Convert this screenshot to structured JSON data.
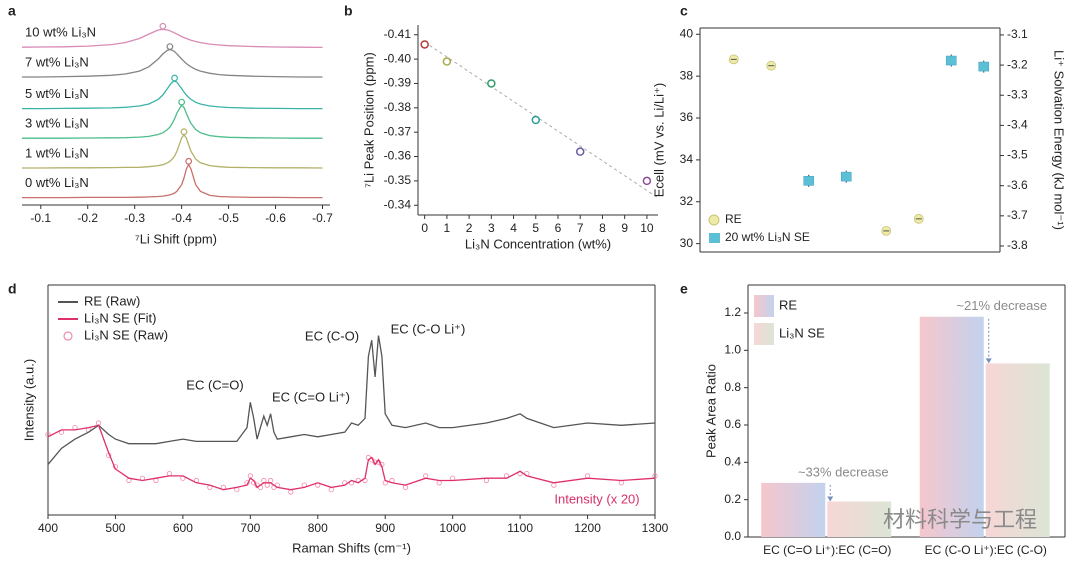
{
  "chart_data": [
    {
      "panel_label": "a",
      "type": "line",
      "xlabel": "⁷Li Shift (ppm)",
      "x": [
        -0.06,
        -0.1,
        -0.15,
        -0.2,
        -0.25,
        -0.28,
        -0.31,
        -0.33,
        -0.35,
        -0.36,
        -0.37,
        -0.375,
        -0.38,
        -0.385,
        -0.39,
        -0.4,
        -0.405,
        -0.41,
        -0.415,
        -0.42,
        -0.43,
        -0.44,
        -0.46,
        -0.48,
        -0.5,
        -0.55,
        -0.6,
        -0.65,
        -0.7
      ],
      "xlim": [
        -0.06,
        -0.716
      ],
      "xticks": [
        -0.1,
        -0.2,
        -0.3,
        -0.4,
        -0.5,
        -0.6,
        -0.7
      ],
      "ylim": [
        0,
        10
      ],
      "peak_markers": true,
      "series": [
        {
          "name": "10 wt% Li₃N",
          "color": "#d98bb5",
          "values": [
            8.53,
            8.54,
            8.55,
            8.59,
            8.67,
            8.78,
            9.0,
            9.24,
            9.46,
            9.5,
            9.46,
            9.42,
            9.36,
            9.3,
            9.24,
            9.11,
            9.05,
            9.0,
            8.95,
            8.91,
            8.84,
            8.78,
            8.7,
            8.65,
            8.61,
            8.57,
            8.54,
            8.53,
            8.52
          ]
        },
        {
          "name": "7 wt% Li₃N",
          "color": "#858585",
          "values": [
            6.92,
            6.92,
            6.94,
            6.96,
            7.01,
            7.08,
            7.24,
            7.47,
            7.89,
            8.17,
            8.37,
            8.4,
            8.37,
            8.29,
            8.17,
            7.89,
            7.77,
            7.65,
            7.55,
            7.47,
            7.33,
            7.24,
            7.12,
            7.05,
            7.01,
            6.96,
            6.94,
            6.92,
            6.92
          ]
        },
        {
          "name": "5 wt% Li₃N",
          "color": "#3bb3a8",
          "values": [
            5.21,
            5.21,
            5.22,
            5.23,
            5.25,
            5.28,
            5.35,
            5.46,
            5.71,
            5.95,
            6.3,
            6.49,
            6.64,
            6.7,
            6.64,
            6.3,
            6.11,
            5.95,
            5.81,
            5.71,
            5.55,
            5.46,
            5.35,
            5.3,
            5.27,
            5.23,
            5.22,
            5.21,
            5.21
          ]
        },
        {
          "name": "3 wt% Li₃N",
          "color": "#4dbd8a",
          "values": [
            3.61,
            3.61,
            3.61,
            3.62,
            3.63,
            3.64,
            3.67,
            3.71,
            3.81,
            3.9,
            4.08,
            4.21,
            4.41,
            4.66,
            4.97,
            5.4,
            5.27,
            4.97,
            4.66,
            4.41,
            4.08,
            3.9,
            3.75,
            3.69,
            3.66,
            3.63,
            3.62,
            3.61,
            3.61
          ]
        },
        {
          "name": "1 wt% Li₃N",
          "color": "#b3b06a",
          "values": [
            2.0,
            2.0,
            2.01,
            2.01,
            2.02,
            2.03,
            2.04,
            2.07,
            2.13,
            2.18,
            2.28,
            2.36,
            2.48,
            2.65,
            2.9,
            3.62,
            3.8,
            3.62,
            3.25,
            2.9,
            2.48,
            2.28,
            2.13,
            2.07,
            2.04,
            2.02,
            2.01,
            2.01,
            2.0
          ]
        },
        {
          "name": "0 wt% Li₃N",
          "color": "#c8706a",
          "values": [
            0.4,
            0.4,
            0.4,
            0.41,
            0.41,
            0.41,
            0.42,
            0.44,
            0.46,
            0.48,
            0.52,
            0.55,
            0.59,
            0.65,
            0.74,
            1.1,
            1.46,
            1.94,
            2.2,
            1.94,
            1.1,
            0.74,
            0.52,
            0.46,
            0.44,
            0.41,
            0.41,
            0.4,
            0.4
          ]
        }
      ]
    },
    {
      "panel_label": "b",
      "type": "scatter",
      "xlabel": "Li₃N Concentration (wt%)",
      "ylabel": "⁷Li Peak Position (ppm)",
      "x": [
        0,
        1,
        3,
        5,
        7,
        10
      ],
      "values": [
        -0.406,
        -0.399,
        -0.39,
        -0.375,
        -0.362,
        -0.35
      ],
      "colors": [
        "#b33a3a",
        "#a8a84a",
        "#2e9e6a",
        "#2a9a9a",
        "#6a5aa8",
        "#8a4a9a"
      ],
      "trendline": {
        "x": [
          0,
          10.5
        ],
        "values": [
          -0.407,
          -0.343
        ]
      },
      "xlim": [
        -0.3,
        10.5
      ],
      "xticks": [
        0,
        1,
        2,
        3,
        4,
        5,
        6,
        7,
        8,
        9,
        10
      ],
      "ylim": [
        -0.336,
        -0.414
      ],
      "yticks": [
        -0.41,
        {
          "value": -0.4,
          "label": "-0.40"
        },
        -0.39,
        -0.38,
        -0.37,
        -0.36,
        -0.35,
        -0.34
      ]
    },
    {
      "panel_label": "c",
      "type": "scatter",
      "ylabel": "Ecell (mV vs. Li/Li⁺)",
      "y2label": "Li⁺ Solvation Energy (kJ mol⁻¹)",
      "categories": [
        null,
        null,
        null,
        null,
        null,
        null,
        null,
        null
      ],
      "ylim": [
        29.6,
        40.3
      ],
      "yticks": [
        30,
        32,
        34,
        36,
        38,
        40
      ],
      "y2lim": [
        -3.82,
        -3.077
      ],
      "y2ticks": [
        -3.8,
        -3.7,
        -3.6,
        -3.5,
        -3.4,
        -3.3,
        -3.2,
        -3.1
      ],
      "legend": "lower left",
      "series": [
        {
          "name": "RE",
          "color": "#eeeaa8",
          "marker": "circle",
          "values": [
            38.8,
            38.5,
            null,
            null,
            null,
            null,
            null,
            null
          ]
        },
        {
          "name": "20 wt% Li₃N SE",
          "color": "#5bbfd6",
          "marker": "square",
          "values": [
            null,
            null,
            33.0,
            33.2,
            null,
            null,
            null,
            null
          ]
        },
        {
          "name": "RE",
          "color": "#eeeaa8",
          "marker": "circle",
          "axis": "y2",
          "values": [
            null,
            null,
            null,
            null,
            -3.75,
            -3.71,
            null,
            null
          ]
        },
        {
          "name": "20 wt% Li₃N SE",
          "color": "#5bbfd6",
          "marker": "square",
          "axis": "y2",
          "values": [
            null,
            null,
            null,
            null,
            null,
            null,
            -3.185,
            -3.205
          ]
        }
      ]
    },
    {
      "panel_label": "d",
      "type": "line",
      "xlabel": "Raman Shifts (cm⁻¹)",
      "ylabel": "Intensity (a.u.)",
      "x": [
        400,
        420,
        440,
        460,
        475,
        490,
        500,
        520,
        540,
        560,
        580,
        600,
        620,
        640,
        660,
        680,
        695,
        700,
        705,
        710,
        715,
        720,
        725,
        730,
        735,
        740,
        760,
        780,
        800,
        820,
        840,
        850,
        860,
        870,
        875,
        880,
        885,
        890,
        895,
        900,
        910,
        930,
        960,
        980,
        1000,
        1050,
        1080,
        1100,
        1110,
        1150,
        1200,
        1250,
        1300
      ],
      "xlim": [
        400,
        1300
      ],
      "xticks": [
        400,
        500,
        600,
        700,
        800,
        900,
        1000,
        1100,
        1200,
        1300
      ],
      "ylim": [
        0,
        10
      ],
      "legend": "upper left",
      "series": [
        {
          "name": "RE (Raw)",
          "color": "#555555",
          "values": [
            2.2,
            2.9,
            3.3,
            3.6,
            3.9,
            3.5,
            3.3,
            3.1,
            3.1,
            3.1,
            3.2,
            3.3,
            3.2,
            3.2,
            3.2,
            3.2,
            3.8,
            4.9,
            4.2,
            3.3,
            3.8,
            4.3,
            3.9,
            4.4,
            3.6,
            3.3,
            3.4,
            3.5,
            3.4,
            3.5,
            3.6,
            4.0,
            3.9,
            4.2,
            6.9,
            7.6,
            6.0,
            7.8,
            6.9,
            4.4,
            3.9,
            3.8,
            4.0,
            3.8,
            3.8,
            4.0,
            4.2,
            4.4,
            4.2,
            3.8,
            4.0,
            3.9,
            4.0
          ]
        },
        {
          "name": "Li₃N SE (Fit)",
          "color": "#e0306a",
          "values": [
            3.4,
            3.7,
            3.7,
            3.8,
            3.9,
            2.7,
            2.0,
            1.6,
            1.5,
            1.6,
            1.7,
            1.7,
            1.4,
            1.3,
            1.1,
            1.2,
            1.3,
            1.6,
            1.5,
            1.2,
            1.3,
            1.4,
            1.4,
            1.4,
            1.3,
            1.2,
            1.1,
            1.2,
            1.4,
            1.2,
            1.3,
            1.5,
            1.4,
            1.6,
            2.4,
            2.5,
            2.2,
            2.4,
            2.1,
            1.5,
            1.4,
            1.3,
            1.6,
            1.5,
            1.5,
            1.6,
            1.6,
            1.9,
            1.7,
            1.4,
            1.6,
            1.5,
            1.6
          ]
        },
        {
          "name": "Li₃N SE (Raw)",
          "color": "#f08aa8",
          "marker": "circle",
          "values": [
            3.5,
            3.6,
            3.8,
            3.7,
            4.0,
            2.6,
            2.1,
            1.5,
            1.6,
            1.5,
            1.8,
            1.6,
            1.5,
            1.2,
            1.2,
            1.1,
            1.4,
            1.7,
            1.4,
            1.3,
            1.2,
            1.5,
            1.3,
            1.5,
            1.2,
            1.3,
            1.0,
            1.3,
            1.3,
            1.1,
            1.4,
            1.4,
            1.5,
            1.5,
            2.5,
            2.4,
            2.3,
            2.3,
            2.2,
            1.4,
            1.5,
            1.2,
            1.7,
            1.4,
            1.6,
            1.5,
            1.7,
            1.8,
            1.8,
            1.3,
            1.7,
            1.4,
            1.7
          ]
        }
      ],
      "annotations": [
        "EC (C=O)",
        "EC (C=O Li⁺)",
        "EC (C-O)",
        "EC (C-O Li⁺)",
        "Intensity (x 20)"
      ]
    },
    {
      "panel_label": "e",
      "type": "bar",
      "ylabel": "Peak Area Ratio",
      "categories": [
        "EC (C=O Li⁺):EC (C=O)",
        "EC (C-O Li⁺):EC (C-O)"
      ],
      "ylim": [
        0,
        1.35
      ],
      "yticks": [
        {
          "value": 0,
          "label": "0.0"
        },
        0.2,
        0.4,
        0.6,
        0.8,
        {
          "value": 1,
          "label": "1.0"
        },
        1.2
      ],
      "legend": "upper left",
      "series": [
        {
          "name": "RE",
          "colors": [
            "#f6c6cc",
            "#c3d2ee"
          ],
          "values": [
            0.29,
            1.18
          ]
        },
        {
          "name": "Li₃N SE",
          "colors": [
            "#f7d6d6",
            "#dbe5d6"
          ],
          "values": [
            0.19,
            0.93
          ]
        }
      ],
      "annotations": [
        "~33% decrease",
        "~21% decrease"
      ]
    }
  ],
  "watermark": "材料科学与工程"
}
